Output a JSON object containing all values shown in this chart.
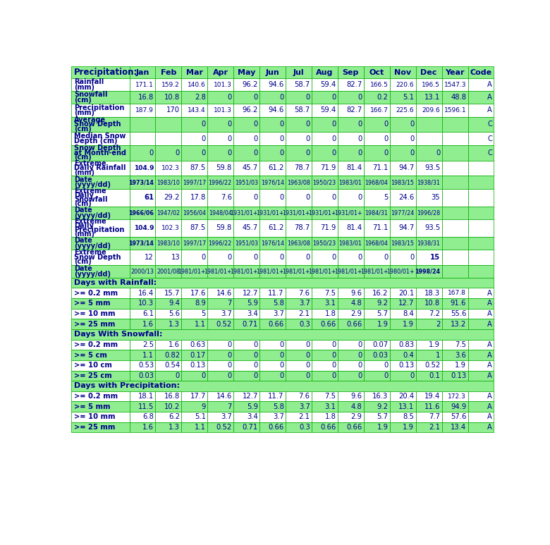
{
  "title": "Precipitation:",
  "header_cols": [
    "Jan",
    "Feb",
    "Mar",
    "Apr",
    "May",
    "Jun",
    "Jul",
    "Aug",
    "Sep",
    "Oct",
    "Nov",
    "Dec",
    "Year",
    "Code"
  ],
  "rows": [
    {
      "label": "Rainfall\n(mm)",
      "values": [
        "171.1",
        "159.2",
        "140.6",
        "101.3",
        "96.2",
        "94.6",
        "58.7",
        "59.4",
        "82.7",
        "166.5",
        "220.6",
        "196.5",
        "1547.3",
        "A"
      ],
      "bold_cols": [],
      "bg": "white"
    },
    {
      "label": "Snowfall\n(cm)",
      "values": [
        "16.8",
        "10.8",
        "2.8",
        "0",
        "0",
        "0",
        "0",
        "0",
        "0",
        "0.2",
        "5.1",
        "13.1",
        "48.8",
        "A"
      ],
      "bold_cols": [],
      "bg": "green"
    },
    {
      "label": "Precipitation\n(mm)",
      "values": [
        "187.9",
        "170",
        "143.4",
        "101.3",
        "96.2",
        "94.6",
        "58.7",
        "59.4",
        "82.7",
        "166.7",
        "225.6",
        "209.6",
        "1596.1",
        "A"
      ],
      "bold_cols": [],
      "bg": "white"
    },
    {
      "label": "Average\nSnow Depth\n(cm)",
      "values": [
        "",
        "",
        "0",
        "0",
        "0",
        "0",
        "0",
        "0",
        "0",
        "0",
        "0",
        "",
        "",
        "C"
      ],
      "bold_cols": [],
      "bg": "green"
    },
    {
      "label": "Median Snow\nDepth (cm)",
      "values": [
        "",
        "",
        "0",
        "0",
        "0",
        "0",
        "0",
        "0",
        "0",
        "0",
        "0",
        "",
        "",
        "C"
      ],
      "bold_cols": [],
      "bg": "white"
    },
    {
      "label": "Snow Depth\nat Month-end\n(cm)",
      "values": [
        "0",
        "0",
        "0",
        "0",
        "0",
        "0",
        "0",
        "0",
        "0",
        "0",
        "0",
        "0",
        "",
        "C"
      ],
      "bold_cols": [],
      "bg": "green"
    },
    {
      "label": "Extreme\nDaily Rainfall\n(mm)",
      "values": [
        "104.9",
        "102.3",
        "87.5",
        "59.8",
        "45.7",
        "61.2",
        "78.7",
        "71.9",
        "81.4",
        "71.1",
        "94.7",
        "93.5",
        "",
        ""
      ],
      "bold_cols": [
        0
      ],
      "bg": "white"
    },
    {
      "label": "Date\n(yyyy/dd)",
      "values": [
        "1973/14",
        "1983/10",
        "1997/17",
        "1996/22",
        "1951/03",
        "1976/14",
        "1963/08",
        "1950/23",
        "1983/01",
        "1968/04",
        "1983/15",
        "1938/31",
        "",
        ""
      ],
      "bold_cols": [
        0
      ],
      "bg": "green"
    },
    {
      "label": "Extreme\nDaily\nSnowfall\n(cm)",
      "values": [
        "61",
        "29.2",
        "17.8",
        "7.6",
        "0",
        "0",
        "0",
        "0",
        "0",
        "5",
        "24.6",
        "35",
        "",
        ""
      ],
      "bold_cols": [
        0
      ],
      "bg": "white"
    },
    {
      "label": "Date\n(yyyy/dd)",
      "values": [
        "1966/06",
        "1947/02",
        "1956/04",
        "1948/04",
        "1931/01+",
        "1931/01+",
        "1931/01+",
        "1931/01+",
        "1931/01+",
        "1984/31",
        "1977/24",
        "1996/28",
        "",
        ""
      ],
      "bold_cols": [
        0
      ],
      "bg": "green"
    },
    {
      "label": "Extreme\nDaily\nPrecipitation\n(mm)",
      "values": [
        "104.9",
        "102.3",
        "87.5",
        "59.8",
        "45.7",
        "61.2",
        "78.7",
        "71.9",
        "81.4",
        "71.1",
        "94.7",
        "93.5",
        "",
        ""
      ],
      "bold_cols": [
        0
      ],
      "bg": "white"
    },
    {
      "label": "Date\n(yyyy/dd)",
      "values": [
        "1973/14",
        "1983/10",
        "1997/17",
        "1996/22",
        "1951/03",
        "1976/14",
        "1963/08",
        "1950/23",
        "1983/01",
        "1968/04",
        "1983/15",
        "1938/31",
        "",
        ""
      ],
      "bold_cols": [
        0
      ],
      "bg": "green"
    },
    {
      "label": "Extreme\nSnow Depth\n(cm)",
      "values": [
        "12",
        "13",
        "0",
        "0",
        "0",
        "0",
        "0",
        "0",
        "0",
        "0",
        "0",
        "15",
        "",
        ""
      ],
      "bold_cols": [
        11
      ],
      "bg": "white"
    },
    {
      "label": "Date\n(yyyy/dd)",
      "values": [
        "2000/13",
        "2001/08",
        "1981/01+",
        "1981/01+",
        "1981/01+",
        "1981/01+",
        "1981/01+",
        "1981/01+",
        "1981/01+",
        "1981/01+",
        "1980/01+",
        "1998/24",
        "",
        ""
      ],
      "bold_cols": [
        11
      ],
      "bg": "green"
    },
    {
      "label": "Days with Rainfall:",
      "values": [
        "",
        "",
        "",
        "",
        "",
        "",
        "",
        "",
        "",
        "",
        "",
        "",
        "",
        ""
      ],
      "bold_cols": [],
      "bg": "green",
      "is_section": true
    },
    {
      "label": ">= 0.2 mm",
      "values": [
        "16.4",
        "15.7",
        "17.6",
        "14.6",
        "12.7",
        "11.7",
        "7.6",
        "7.5",
        "9.6",
        "16.2",
        "20.1",
        "18.3",
        "167.8",
        "A"
      ],
      "bold_cols": [],
      "bg": "white"
    },
    {
      "label": ">= 5 mm",
      "values": [
        "10.3",
        "9.4",
        "8.9",
        "7",
        "5.9",
        "5.8",
        "3.7",
        "3.1",
        "4.8",
        "9.2",
        "12.7",
        "10.8",
        "91.6",
        "A"
      ],
      "bold_cols": [],
      "bg": "green"
    },
    {
      "label": ">= 10 mm",
      "values": [
        "6.1",
        "5.6",
        "5",
        "3.7",
        "3.4",
        "3.7",
        "2.1",
        "1.8",
        "2.9",
        "5.7",
        "8.4",
        "7.2",
        "55.6",
        "A"
      ],
      "bold_cols": [],
      "bg": "white"
    },
    {
      "label": ">= 25 mm",
      "values": [
        "1.6",
        "1.3",
        "1.1",
        "0.52",
        "0.71",
        "0.66",
        "0.3",
        "0.66",
        "0.66",
        "1.9",
        "1.9",
        "2",
        "13.2",
        "A"
      ],
      "bold_cols": [],
      "bg": "green"
    },
    {
      "label": "Days With Snowfall:",
      "values": [
        "",
        "",
        "",
        "",
        "",
        "",
        "",
        "",
        "",
        "",
        "",
        "",
        "",
        ""
      ],
      "bold_cols": [],
      "bg": "green",
      "is_section": true
    },
    {
      "label": ">= 0.2 mm",
      "values": [
        "2.5",
        "1.6",
        "0.63",
        "0",
        "0",
        "0",
        "0",
        "0",
        "0",
        "0.07",
        "0.83",
        "1.9",
        "7.5",
        "A"
      ],
      "bold_cols": [],
      "bg": "white"
    },
    {
      "label": ">= 5 cm",
      "values": [
        "1.1",
        "0.82",
        "0.17",
        "0",
        "0",
        "0",
        "0",
        "0",
        "0",
        "0.03",
        "0.4",
        "1",
        "3.6",
        "A"
      ],
      "bold_cols": [],
      "bg": "green"
    },
    {
      "label": ">= 10 cm",
      "values": [
        "0.53",
        "0.54",
        "0.13",
        "0",
        "0",
        "0",
        "0",
        "0",
        "0",
        "0",
        "0.13",
        "0.52",
        "1.9",
        "A"
      ],
      "bold_cols": [],
      "bg": "white"
    },
    {
      "label": ">= 25 cm",
      "values": [
        "0.03",
        "0",
        "0",
        "0",
        "0",
        "0",
        "0",
        "0",
        "0",
        "0",
        "0",
        "0.1",
        "0.13",
        "A"
      ],
      "bold_cols": [],
      "bg": "green"
    },
    {
      "label": "Days with Precipitation:",
      "values": [
        "",
        "",
        "",
        "",
        "",
        "",
        "",
        "",
        "",
        "",
        "",
        "",
        "",
        ""
      ],
      "bold_cols": [],
      "bg": "green",
      "is_section": true
    },
    {
      "label": ">= 0.2 mm",
      "values": [
        "18.1",
        "16.8",
        "17.7",
        "14.6",
        "12.7",
        "11.7",
        "7.6",
        "7.5",
        "9.6",
        "16.3",
        "20.4",
        "19.4",
        "172.3",
        "A"
      ],
      "bold_cols": [],
      "bg": "white"
    },
    {
      "label": ">= 5 mm",
      "values": [
        "11.5",
        "10.2",
        "9",
        "7",
        "5.9",
        "5.8",
        "3.7",
        "3.1",
        "4.8",
        "9.2",
        "13.1",
        "11.6",
        "94.9",
        "A"
      ],
      "bold_cols": [],
      "bg": "green"
    },
    {
      "label": ">= 10 mm",
      "values": [
        "6.8",
        "6.2",
        "5.1",
        "3.7",
        "3.4",
        "3.7",
        "2.1",
        "1.8",
        "2.9",
        "5.7",
        "8.5",
        "7.7",
        "57.6",
        "A"
      ],
      "bold_cols": [],
      "bg": "white"
    },
    {
      "label": ">= 25 mm",
      "values": [
        "1.6",
        "1.3",
        "1.1",
        "0.52",
        "0.71",
        "0.66",
        "0.3",
        "0.66",
        "0.66",
        "1.9",
        "1.9",
        "2.1",
        "13.4",
        "A"
      ],
      "bold_cols": [],
      "bg": "green"
    }
  ],
  "colors": {
    "header_bg": "#90EE90",
    "header_text": "#00008B",
    "white_bg": "#FFFFFF",
    "green_bg": "#90EE90",
    "border": "#00AA00",
    "data_text": "#00008B",
    "title_color": "#00008B"
  },
  "row_heights": {
    "section": 0.19,
    "1line": 0.19,
    "2line": 0.235,
    "3line": 0.285,
    "4line": 0.325
  }
}
